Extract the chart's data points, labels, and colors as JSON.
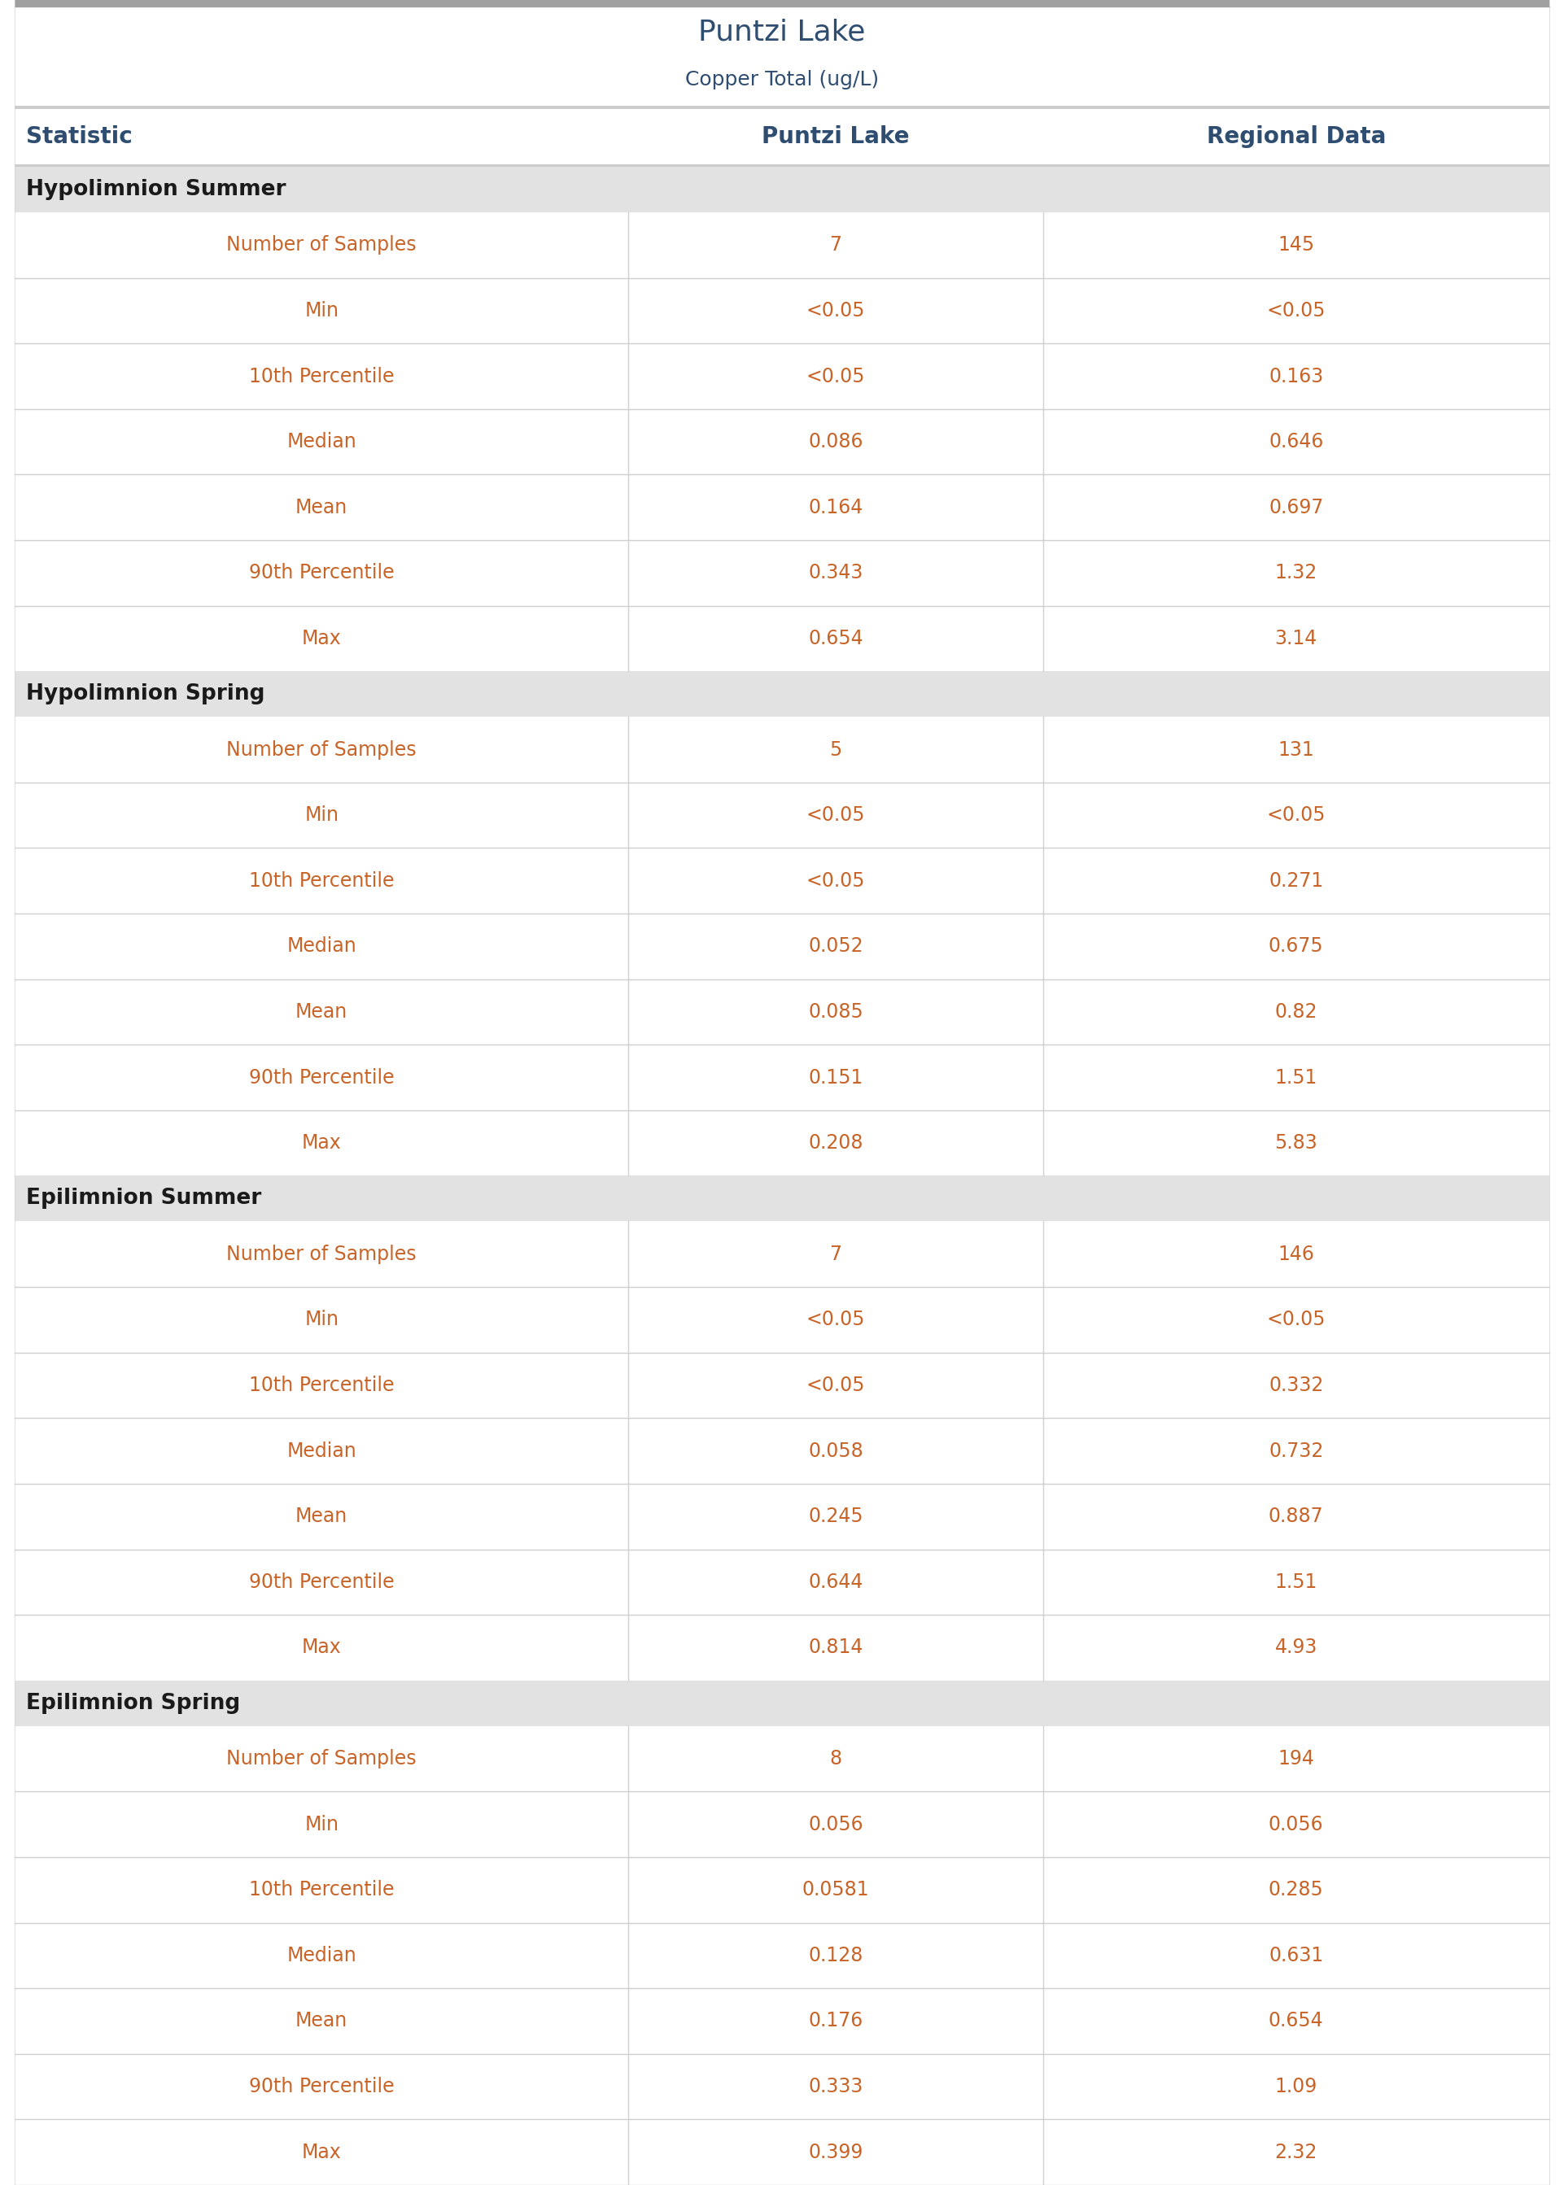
{
  "title": "Puntzi Lake",
  "subtitle": "Copper Total (ug/L)",
  "col_headers": [
    "Statistic",
    "Puntzi Lake",
    "Regional Data"
  ],
  "sections": [
    {
      "name": "Hypolimnion Summer",
      "rows": [
        [
          "Number of Samples",
          "7",
          "145"
        ],
        [
          "Min",
          "<0.05",
          "<0.05"
        ],
        [
          "10th Percentile",
          "<0.05",
          "0.163"
        ],
        [
          "Median",
          "0.086",
          "0.646"
        ],
        [
          "Mean",
          "0.164",
          "0.697"
        ],
        [
          "90th Percentile",
          "0.343",
          "1.32"
        ],
        [
          "Max",
          "0.654",
          "3.14"
        ]
      ]
    },
    {
      "name": "Hypolimnion Spring",
      "rows": [
        [
          "Number of Samples",
          "5",
          "131"
        ],
        [
          "Min",
          "<0.05",
          "<0.05"
        ],
        [
          "10th Percentile",
          "<0.05",
          "0.271"
        ],
        [
          "Median",
          "0.052",
          "0.675"
        ],
        [
          "Mean",
          "0.085",
          "0.82"
        ],
        [
          "90th Percentile",
          "0.151",
          "1.51"
        ],
        [
          "Max",
          "0.208",
          "5.83"
        ]
      ]
    },
    {
      "name": "Epilimnion Summer",
      "rows": [
        [
          "Number of Samples",
          "7",
          "146"
        ],
        [
          "Min",
          "<0.05",
          "<0.05"
        ],
        [
          "10th Percentile",
          "<0.05",
          "0.332"
        ],
        [
          "Median",
          "0.058",
          "0.732"
        ],
        [
          "Mean",
          "0.245",
          "0.887"
        ],
        [
          "90th Percentile",
          "0.644",
          "1.51"
        ],
        [
          "Max",
          "0.814",
          "4.93"
        ]
      ]
    },
    {
      "name": "Epilimnion Spring",
      "rows": [
        [
          "Number of Samples",
          "8",
          "194"
        ],
        [
          "Min",
          "0.056",
          "0.056"
        ],
        [
          "10th Percentile",
          "0.0581",
          "0.285"
        ],
        [
          "Median",
          "0.128",
          "0.631"
        ],
        [
          "Mean",
          "0.176",
          "0.654"
        ],
        [
          "90th Percentile",
          "0.333",
          "1.09"
        ],
        [
          "Max",
          "0.399",
          "2.32"
        ]
      ]
    }
  ],
  "title_color": "#2e4d70",
  "subtitle_color": "#2e4d70",
  "header_text_color": "#2e4d70",
  "section_bg_color": "#e2e2e2",
  "section_text_color": "#1a1a1a",
  "data_text_color": "#c86428",
  "statistic_text_color": "#c86428",
  "row_bg_white": "#ffffff",
  "divider_color": "#d0d0d0",
  "top_bar_color": "#a0a0a0",
  "col1_sep": 0.4,
  "col2_sep": 0.67,
  "title_fontsize": 26,
  "subtitle_fontsize": 18,
  "header_fontsize": 20,
  "section_fontsize": 19,
  "data_fontsize": 17
}
